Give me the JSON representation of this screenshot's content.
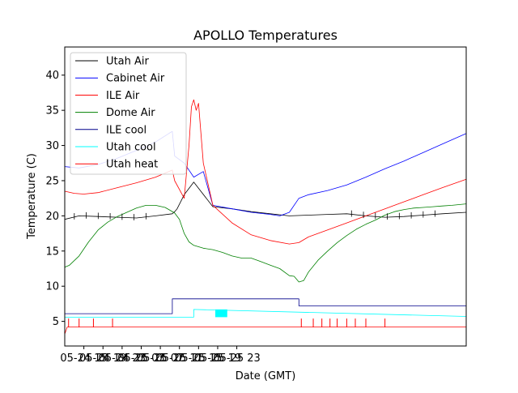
{
  "chart_data": {
    "type": "line",
    "title": "APOLLO Temperatures",
    "xlabel": "Date (GMT)",
    "ylabel": "Temperature (C)",
    "x_hours_range": [
      11,
      95
    ],
    "ylim": [
      1.5,
      44
    ],
    "yticks": [
      5,
      10,
      15,
      20,
      25,
      30,
      35,
      40
    ],
    "xticks": [
      {
        "label": "05-24 15",
        "hour": 15
      },
      {
        "label": "05-24 19",
        "hour": 19
      },
      {
        "label": "05-24 23",
        "hour": 23
      },
      {
        "label": "05-25 03",
        "hour": 27
      },
      {
        "label": "05-25 07",
        "hour": 31
      },
      {
        "label": "05-25 11",
        "hour": 35
      },
      {
        "label": "05-25 15",
        "hour": 39
      },
      {
        "label": "05-25 19",
        "hour": 43
      },
      {
        "label": "05-25 23",
        "hour": 47
      }
    ],
    "legend_position": "upper-left",
    "series": [
      {
        "name": "Utah Air",
        "color": "#000000",
        "x": [
          11,
          14,
          18,
          22,
          26,
          30,
          33.5,
          34,
          34.5,
          36,
          38,
          42,
          46,
          50,
          54,
          58,
          62,
          66,
          70,
          74,
          78,
          82,
          86,
          90,
          95
        ],
        "y": [
          19.5,
          20,
          19.9,
          19.8,
          19.7,
          20,
          20.3,
          20.6,
          21,
          23,
          24.8,
          21.3,
          21,
          20.6,
          20.3,
          20,
          20.1,
          20.2,
          20.3,
          20,
          19.8,
          19.9,
          20.1,
          20.3,
          20.5
        ]
      },
      {
        "name": "Cabinet Air",
        "color": "#0000ff",
        "x": [
          11,
          14,
          18,
          22,
          26,
          30,
          33,
          33.5,
          34,
          36,
          38,
          40,
          42,
          46,
          50,
          54,
          56,
          58,
          60,
          62,
          66,
          70,
          74,
          78,
          82,
          86,
          90,
          95
        ],
        "y": [
          27,
          26.8,
          27.3,
          28.2,
          29.3,
          30.5,
          31.8,
          32,
          28.5,
          27.5,
          25.5,
          26.3,
          21.5,
          21,
          20.5,
          20.2,
          20,
          20.5,
          22.5,
          23,
          23.6,
          24.4,
          25.5,
          26.7,
          27.8,
          29,
          30.2,
          31.7
        ]
      },
      {
        "name": "ILE Air",
        "color": "#ff0000",
        "x": [
          11,
          13,
          15,
          18,
          22,
          26,
          30,
          33.5,
          34,
          36,
          37,
          37.5,
          38,
          38.5,
          39,
          40,
          42,
          46,
          50,
          54,
          58,
          60,
          62,
          66,
          70,
          74,
          78,
          82,
          86,
          90,
          95
        ],
        "y": [
          23.5,
          23.2,
          23.1,
          23.3,
          24,
          24.7,
          25.5,
          26.5,
          25,
          22.5,
          30,
          35.5,
          36.5,
          35,
          36,
          27.5,
          21.5,
          19,
          17.3,
          16.5,
          16,
          16.2,
          17,
          18,
          19,
          20,
          21,
          22,
          23,
          24,
          25.2
        ]
      },
      {
        "name": "Dome Air",
        "color": "#008000",
        "x": [
          11,
          12,
          14,
          16,
          18,
          20,
          22,
          24,
          26,
          28,
          30,
          32,
          33,
          34,
          35,
          36,
          37,
          38,
          40,
          42,
          44,
          46,
          48,
          50,
          52,
          54,
          56,
          58,
          59,
          60,
          61,
          62,
          64,
          66,
          68,
          70,
          72,
          74,
          76,
          78,
          80,
          82,
          84,
          86,
          88,
          90,
          92,
          95
        ],
        "y": [
          12.7,
          13,
          14.3,
          16.3,
          18,
          19.1,
          19.9,
          20.5,
          21.1,
          21.5,
          21.5,
          21.2,
          20.8,
          20.4,
          19.5,
          17.5,
          16.3,
          15.8,
          15.4,
          15.2,
          14.8,
          14.3,
          14,
          14,
          13.5,
          13,
          12.5,
          11.5,
          11.4,
          10.6,
          10.8,
          12,
          13.7,
          15,
          16.2,
          17.2,
          18.1,
          18.8,
          19.4,
          20.1,
          20.6,
          20.9,
          21.1,
          21.2,
          21.3,
          21.4,
          21.5,
          21.7
        ]
      },
      {
        "name": "ILE cool",
        "color": "#00008b",
        "x": [
          11,
          33.5,
          33.5,
          60,
          60,
          95
        ],
        "y": [
          6.1,
          6.1,
          8.2,
          8.2,
          7.2,
          7.2
        ]
      },
      {
        "name": "Utah cool",
        "color": "#00ffff",
        "x": [
          11,
          38,
          38,
          95
        ],
        "y": [
          5.6,
          5.6,
          6.7,
          5.7
        ]
      },
      {
        "name": "Utah heat",
        "color": "#ff0000",
        "x": [
          11,
          11.5,
          95
        ],
        "y": [
          3.2,
          4.2,
          4.2
        ]
      }
    ]
  }
}
